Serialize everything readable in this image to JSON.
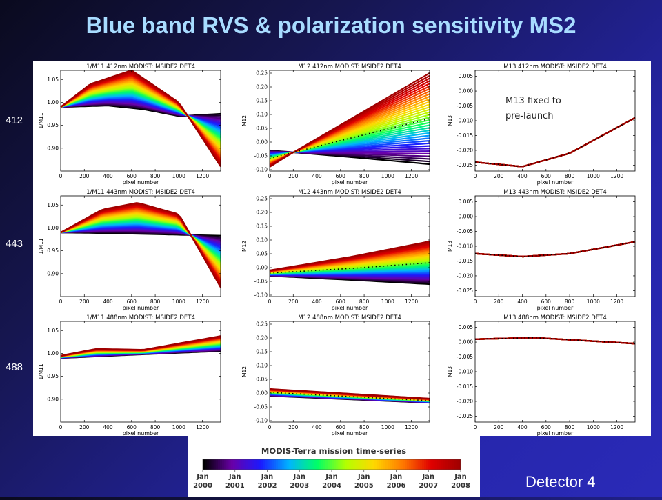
{
  "page": {
    "title": "Blue band RVS & polarization sensitivity MS2",
    "row_labels": [
      "412",
      "443",
      "488"
    ],
    "detector_label": "Detector 4",
    "annotation": [
      "M13 fixed to",
      "pre-launch"
    ]
  },
  "colorbar": {
    "title": "MODIS-Terra mission time-series",
    "ticks": [
      {
        "mon": "Jan",
        "year": "2000"
      },
      {
        "mon": "Jan",
        "year": "2001"
      },
      {
        "mon": "Jan",
        "year": "2002"
      },
      {
        "mon": "Jan",
        "year": "2003"
      },
      {
        "mon": "Jan",
        "year": "2004"
      },
      {
        "mon": "Jan",
        "year": "2005"
      },
      {
        "mon": "Jan",
        "year": "2006"
      },
      {
        "mon": "Jan",
        "year": "2007"
      },
      {
        "mon": "Jan",
        "year": "2008"
      }
    ],
    "colors": [
      "#000000",
      "#6a00a8",
      "#1a1aff",
      "#00b4ff",
      "#00ff66",
      "#b4ff00",
      "#ffd800",
      "#ff7800",
      "#e00000",
      "#a00000"
    ]
  },
  "chart_data": [
    {
      "type": "line",
      "title": "1/M11 412nm MODIST: MSIDE2 DET4",
      "xlabel": "pixel number",
      "ylabel": "1/M11",
      "xlim": [
        0,
        1354
      ],
      "ylim": [
        0.85,
        1.07
      ],
      "xticks": [
        "0",
        "200",
        "400",
        "600",
        "800",
        "1000",
        "1200"
      ],
      "yticks": [
        "0.90",
        "0.95",
        "1.00",
        "1.05"
      ],
      "ytick_values": [
        0.9,
        0.95,
        1.0,
        1.05
      ],
      "series": [
        {
          "time": 0,
          "values": [
            [
              0,
              0.99
            ],
            [
              400,
              0.993
            ],
            [
              700,
              0.985
            ],
            [
              1000,
              0.97
            ],
            [
              1354,
              0.975
            ]
          ]
        },
        {
          "time": 1,
          "values": [
            [
              0,
              0.99
            ],
            [
              250,
              1.04
            ],
            [
              600,
              1.07
            ],
            [
              1000,
              1.0
            ],
            [
              1354,
              0.86
            ]
          ]
        }
      ]
    },
    {
      "type": "line",
      "title": "M12 412nm MODIST: MSIDE2 DET4",
      "xlabel": "pixel number",
      "ylabel": "M12",
      "xlim": [
        0,
        1354
      ],
      "ylim": [
        -0.105,
        0.26
      ],
      "xticks": [
        "0",
        "200",
        "400",
        "600",
        "800",
        "1000",
        "1200"
      ],
      "yticks": [
        "-0.10",
        "-0.05",
        "0.00",
        "0.05",
        "0.10",
        "0.15",
        "0.20",
        "0.25"
      ],
      "ytick_values": [
        -0.1,
        -0.05,
        0.0,
        0.05,
        0.1,
        0.15,
        0.2,
        0.25
      ],
      "series": [
        {
          "time": 0,
          "values": [
            [
              0,
              -0.03
            ],
            [
              700,
              -0.055
            ],
            [
              1354,
              -0.08
            ]
          ]
        },
        {
          "time": 1,
          "values": [
            [
              0,
              -0.09
            ],
            [
              150,
              -0.05
            ],
            [
              1354,
              0.25
            ]
          ]
        }
      ]
    },
    {
      "type": "line",
      "title": "M13 412nm MODIST: MSIDE2 DET4",
      "xlabel": "pixel number",
      "ylabel": "M13",
      "xlim": [
        0,
        1354
      ],
      "ylim": [
        -0.027,
        0.007
      ],
      "xticks": [
        "0",
        "200",
        "400",
        "600",
        "800",
        "1000",
        "1200"
      ],
      "yticks": [
        "-0.025",
        "-0.020",
        "-0.015",
        "-0.010",
        "-0.005",
        "0.000",
        "0.005"
      ],
      "ytick_values": [
        -0.025,
        -0.02,
        -0.015,
        -0.01,
        -0.005,
        0.0,
        0.005
      ],
      "series": [
        {
          "time": 0,
          "values": [
            [
              0,
              -0.024
            ],
            [
              400,
              -0.0255
            ],
            [
              800,
              -0.021
            ],
            [
              1354,
              -0.009
            ]
          ]
        },
        {
          "time": 1,
          "values": [
            [
              0,
              -0.024
            ],
            [
              400,
              -0.0255
            ],
            [
              800,
              -0.021
            ],
            [
              1354,
              -0.009
            ]
          ]
        }
      ]
    },
    {
      "type": "line",
      "title": "1/M11 443nm MODIST: MSIDE2 DET4",
      "xlabel": "pixel number",
      "ylabel": "1/M11",
      "xlim": [
        0,
        1354
      ],
      "ylim": [
        0.85,
        1.07
      ],
      "xticks": [
        "0",
        "200",
        "400",
        "600",
        "800",
        "1000",
        "1200"
      ],
      "yticks": [
        "0.90",
        "0.95",
        "1.00",
        "1.05"
      ],
      "ytick_values": [
        0.9,
        0.95,
        1.0,
        1.05
      ],
      "series": [
        {
          "time": 0,
          "values": [
            [
              0,
              0.99
            ],
            [
              500,
              0.988
            ],
            [
              1000,
              0.985
            ],
            [
              1354,
              0.983
            ]
          ]
        },
        {
          "time": 1,
          "values": [
            [
              0,
              0.99
            ],
            [
              350,
              1.04
            ],
            [
              650,
              1.055
            ],
            [
              1000,
              1.03
            ],
            [
              1354,
              0.87
            ]
          ]
        }
      ]
    },
    {
      "type": "line",
      "title": "M12 443nm MODIST: MSIDE2 DET4",
      "xlabel": "pixel number",
      "ylabel": "M12",
      "xlim": [
        0,
        1354
      ],
      "ylim": [
        -0.105,
        0.26
      ],
      "xticks": [
        "0",
        "200",
        "400",
        "600",
        "800",
        "1000",
        "1200"
      ],
      "yticks": [
        "-0.10",
        "-0.05",
        "0.00",
        "0.05",
        "0.10",
        "0.15",
        "0.20",
        "0.25"
      ],
      "ytick_values": [
        -0.1,
        -0.05,
        0.0,
        0.05,
        0.1,
        0.15,
        0.2,
        0.25
      ],
      "series": [
        {
          "time": 0,
          "values": [
            [
              0,
              -0.03
            ],
            [
              700,
              -0.045
            ],
            [
              1354,
              -0.06
            ]
          ]
        },
        {
          "time": 1,
          "values": [
            [
              0,
              -0.01
            ],
            [
              700,
              0.04
            ],
            [
              1354,
              0.095
            ]
          ]
        }
      ]
    },
    {
      "type": "line",
      "title": "M13 443nm MODIST: MSIDE2 DET4",
      "xlabel": "pixel number",
      "ylabel": "M13",
      "xlim": [
        0,
        1354
      ],
      "ylim": [
        -0.027,
        0.007
      ],
      "xticks": [
        "0",
        "200",
        "400",
        "600",
        "800",
        "1000",
        "1200"
      ],
      "yticks": [
        "-0.025",
        "-0.020",
        "-0.015",
        "-0.010",
        "-0.005",
        "0.000",
        "0.005"
      ],
      "ytick_values": [
        -0.025,
        -0.02,
        -0.015,
        -0.01,
        -0.005,
        0.0,
        0.005
      ],
      "series": [
        {
          "time": 0,
          "values": [
            [
              0,
              -0.0125
            ],
            [
              400,
              -0.0135
            ],
            [
              800,
              -0.0125
            ],
            [
              1354,
              -0.0085
            ]
          ]
        },
        {
          "time": 1,
          "values": [
            [
              0,
              -0.0125
            ],
            [
              400,
              -0.0135
            ],
            [
              800,
              -0.0125
            ],
            [
              1354,
              -0.0085
            ]
          ]
        }
      ]
    },
    {
      "type": "line",
      "title": "1/M11 488nm MODIST: MSIDE2 DET4",
      "xlabel": "pixel number",
      "ylabel": "1/M11",
      "xlim": [
        0,
        1354
      ],
      "ylim": [
        0.85,
        1.07
      ],
      "xticks": [
        "0",
        "200",
        "400",
        "600",
        "800",
        "1000",
        "1200"
      ],
      "yticks": [
        "0.90",
        "0.95",
        "1.00",
        "1.05"
      ],
      "ytick_values": [
        0.9,
        0.95,
        1.0,
        1.05
      ],
      "series": [
        {
          "time": 0,
          "values": [
            [
              0,
              0.99
            ],
            [
              700,
              0.998
            ],
            [
              1354,
              1.005
            ]
          ]
        },
        {
          "time": 1,
          "values": [
            [
              0,
              0.995
            ],
            [
              300,
              1.01
            ],
            [
              700,
              1.008
            ],
            [
              1354,
              1.038
            ]
          ]
        }
      ]
    },
    {
      "type": "line",
      "title": "M12 488nm MODIST: MSIDE2 DET4",
      "xlabel": "pixel number",
      "ylabel": "M12",
      "xlim": [
        0,
        1354
      ],
      "ylim": [
        -0.105,
        0.26
      ],
      "xticks": [
        "0",
        "200",
        "400",
        "600",
        "800",
        "1000",
        "1200"
      ],
      "yticks": [
        "-0.10",
        "-0.05",
        "0.00",
        "0.05",
        "0.10",
        "0.15",
        "0.20",
        "0.25"
      ],
      "ytick_values": [
        -0.1,
        -0.05,
        0.0,
        0.05,
        0.1,
        0.15,
        0.2,
        0.25
      ],
      "series": [
        {
          "time": 0,
          "values": [
            [
              0,
              -0.01
            ],
            [
              1354,
              -0.035
            ]
          ]
        },
        {
          "time": 1,
          "values": [
            [
              0,
              0.015
            ],
            [
              1354,
              -0.02
            ]
          ]
        }
      ]
    },
    {
      "type": "line",
      "title": "M13 488nm MODIST: MSIDE2 DET4",
      "xlabel": "pixel number",
      "ylabel": "M13",
      "xlim": [
        0,
        1354
      ],
      "ylim": [
        -0.027,
        0.007
      ],
      "xticks": [
        "0",
        "200",
        "400",
        "600",
        "800",
        "1000",
        "1200"
      ],
      "yticks": [
        "-0.025",
        "-0.020",
        "-0.015",
        "-0.010",
        "-0.005",
        "0.000",
        "0.005"
      ],
      "ytick_values": [
        -0.025,
        -0.02,
        -0.015,
        -0.01,
        -0.005,
        0.0,
        0.005
      ],
      "series": [
        {
          "time": 0,
          "values": [
            [
              0,
              0.001
            ],
            [
              500,
              0.0015
            ],
            [
              1354,
              -0.0005
            ]
          ]
        },
        {
          "time": 1,
          "values": [
            [
              0,
              0.001
            ],
            [
              500,
              0.0015
            ],
            [
              1354,
              -0.0005
            ]
          ]
        }
      ]
    }
  ]
}
